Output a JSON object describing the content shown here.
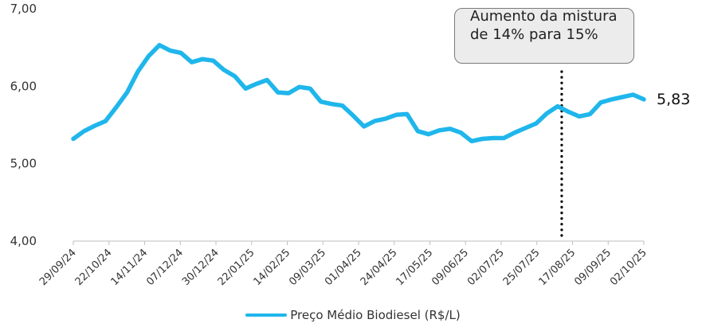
{
  "chart_data": {
    "type": "line",
    "title": "",
    "xlabel": "",
    "ylabel": "",
    "ylim": [
      4,
      7
    ],
    "yticks": [
      "4,00",
      "5,00",
      "6,00",
      "7,00"
    ],
    "xtick_labels": [
      "29/09/24",
      "22/10/24",
      "14/11/24",
      "07/12/24",
      "30/12/24",
      "22/01/25",
      "14/02/25",
      "09/03/25",
      "01/04/25",
      "24/04/25",
      "17/05/25",
      "09/06/25",
      "02/07/25",
      "25/07/25",
      "17/08/25",
      "09/09/25",
      "02/10/25"
    ],
    "grid": false,
    "legend_position": "bottom",
    "series": [
      {
        "name": "Preço Médio Biodiesel (R$/L)",
        "color": "#1fb6ec",
        "values": [
          5.32,
          5.42,
          5.49,
          5.55,
          5.73,
          5.92,
          6.19,
          6.39,
          6.53,
          6.46,
          6.43,
          6.31,
          6.35,
          6.33,
          6.21,
          6.13,
          5.97,
          6.03,
          6.08,
          5.92,
          5.91,
          5.99,
          5.97,
          5.8,
          5.77,
          5.75,
          5.62,
          5.48,
          5.55,
          5.58,
          5.63,
          5.64,
          5.42,
          5.38,
          5.43,
          5.45,
          5.4,
          5.29,
          5.32,
          5.33,
          5.33,
          5.4,
          5.46,
          5.52,
          5.65,
          5.74,
          5.67,
          5.61,
          5.64,
          5.79,
          5.83,
          5.86,
          5.89,
          5.83
        ]
      }
    ],
    "last_value_label": "5,83",
    "annotation": {
      "text": "Aumento da mistura de 14% para 15%",
      "at_index": 45,
      "line_style": "dotted"
    }
  }
}
